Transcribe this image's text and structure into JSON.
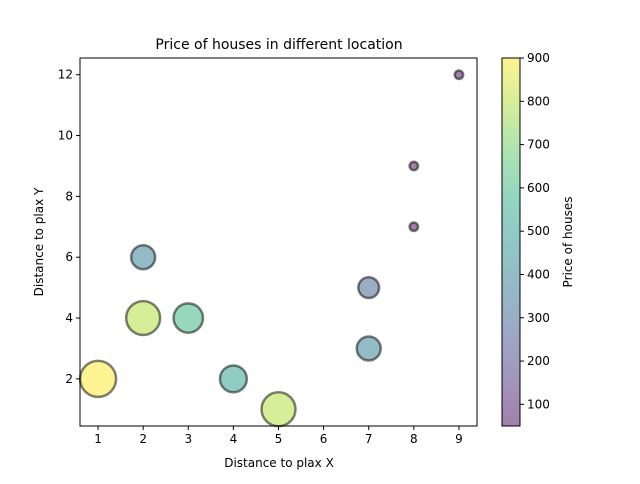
{
  "chart_data": {
    "type": "scatter",
    "title": "Price of houses in different location",
    "xlabel": "Distance to plax X",
    "ylabel": "Distance to plax Y",
    "xlim": [
      0.6,
      9.4
    ],
    "ylim": [
      0.45,
      12.55
    ],
    "xticks": [
      1,
      2,
      3,
      4,
      5,
      6,
      7,
      8,
      9
    ],
    "yticks": [
      2,
      4,
      6,
      8,
      10,
      12
    ],
    "grid": false,
    "colormap": "viridis",
    "alpha": 0.5,
    "marker_edge_color": "#000000",
    "points": [
      {
        "x": 1,
        "y": 2,
        "price": 900
      },
      {
        "x": 2,
        "y": 6,
        "price": 400
      },
      {
        "x": 2,
        "y": 4,
        "price": 800
      },
      {
        "x": 3,
        "y": 4,
        "price": 600
      },
      {
        "x": 4,
        "y": 2,
        "price": 500
      },
      {
        "x": 5,
        "y": 1,
        "price": 800
      },
      {
        "x": 7,
        "y": 5,
        "price": 300
      },
      {
        "x": 7,
        "y": 3,
        "price": 400
      },
      {
        "x": 8,
        "y": 9,
        "price": 50
      },
      {
        "x": 8,
        "y": 7,
        "price": 50
      },
      {
        "x": 9,
        "y": 12,
        "price": 50
      }
    ],
    "colorbar": {
      "label": "Price of houses",
      "range": [
        50,
        900
      ],
      "ticks": [
        100,
        200,
        300,
        400,
        500,
        600,
        700,
        800,
        900
      ]
    }
  }
}
